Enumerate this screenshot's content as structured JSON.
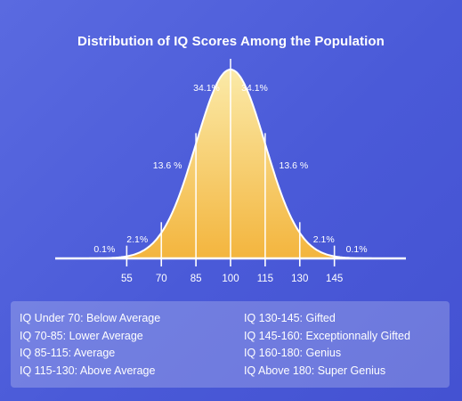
{
  "chart_data": {
    "type": "area",
    "title": "Distribution of IQ Scores Among the Population",
    "distribution": {
      "mean": 100,
      "sd": 15
    },
    "x_ticks": [
      55,
      70,
      85,
      100,
      115,
      130,
      145
    ],
    "xlim": [
      24,
      176
    ],
    "region_labels": [
      {
        "x": 100,
        "side": "left",
        "text": "34.1%"
      },
      {
        "x": 100,
        "side": "right",
        "text": "34.1%"
      },
      {
        "x": 85,
        "side": "left",
        "text": "13.6 %"
      },
      {
        "x": 115,
        "side": "right",
        "text": "13.6 %"
      },
      {
        "x": 70,
        "side": "left",
        "text": "2.1%"
      },
      {
        "x": 130,
        "side": "right",
        "text": "2.1%"
      },
      {
        "x": 55,
        "side": "left",
        "text": "0.1%"
      },
      {
        "x": 145,
        "side": "right",
        "text": "0.1%"
      }
    ],
    "colors": {
      "fill_top": "#fbeaa8",
      "fill_bottom": "#f3b53e",
      "line": "#ffffff"
    }
  },
  "legend": {
    "left": [
      "IQ Under 70: Below Average",
      "IQ 70-85: Lower Average",
      "IQ 85-115: Average",
      "IQ 115-130: Above Average"
    ],
    "right": [
      "IQ 130-145: Gifted",
      "IQ 145-160: Exceptionnally Gifted",
      "IQ 160-180: Genius",
      "IQ Above 180: Super Genius"
    ]
  }
}
